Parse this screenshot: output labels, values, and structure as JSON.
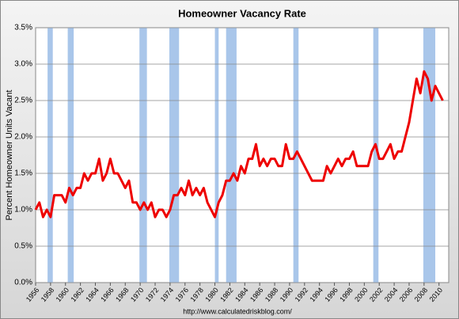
{
  "chart_data": {
    "type": "line",
    "title": "Homeowner Vacancy Rate",
    "y_label": "Percent Homeowner Units Vacant",
    "source": "http://www.calculatedriskblog.com/",
    "xlim": [
      1956,
      2011.3
    ],
    "xticks": [
      1956,
      1958,
      1960,
      1962,
      1964,
      1966,
      1968,
      1970,
      1972,
      1974,
      1976,
      1978,
      1980,
      1982,
      1984,
      1986,
      1988,
      1990,
      1992,
      1994,
      1996,
      1998,
      2000,
      2002,
      2004,
      2006,
      2008,
      2010
    ],
    "ylim": [
      0,
      3.5
    ],
    "yticks": [
      {
        "value": 0,
        "label": "0.0%"
      },
      {
        "value": 0.5,
        "label": "0.5%"
      },
      {
        "value": 1,
        "label": "1.0%"
      },
      {
        "value": 1.5,
        "label": "1.5%"
      },
      {
        "value": 2,
        "label": "2.0%"
      },
      {
        "value": 2.5,
        "label": "2.5%"
      },
      {
        "value": 3,
        "label": "3.0%"
      },
      {
        "value": 3.5,
        "label": "3.5%"
      }
    ],
    "grid": true,
    "recession_color": "#a9c6ea",
    "recessions": [
      [
        1957.6,
        1958.3
      ],
      [
        1960.3,
        1961.1
      ],
      [
        1969.9,
        1970.9
      ],
      [
        1973.9,
        1975.2
      ],
      [
        1980.0,
        1980.5
      ],
      [
        1981.5,
        1982.9
      ],
      [
        1990.5,
        1991.2
      ],
      [
        2001.2,
        2001.9
      ],
      [
        2007.9,
        2009.5
      ]
    ],
    "series": [
      {
        "color": "#ee0000",
        "x": [
          1956,
          1956.5,
          1957,
          1957.5,
          1958,
          1958.5,
          1959,
          1959.5,
          1960,
          1960.5,
          1961,
          1961.5,
          1962,
          1962.5,
          1963,
          1963.5,
          1964,
          1964.5,
          1965,
          1965.5,
          1966,
          1966.5,
          1967,
          1967.5,
          1968,
          1968.5,
          1969,
          1969.5,
          1970,
          1970.5,
          1971,
          1971.5,
          1972,
          1972.5,
          1973,
          1973.5,
          1974,
          1974.5,
          1975,
          1975.5,
          1976,
          1976.5,
          1977,
          1977.5,
          1978,
          1978.5,
          1979,
          1979.5,
          1980,
          1980.5,
          1981,
          1981.5,
          1982,
          1982.5,
          1983,
          1983.5,
          1984,
          1984.5,
          1985,
          1985.5,
          1986,
          1986.5,
          1987,
          1987.5,
          1988,
          1988.5,
          1989,
          1989.5,
          1990,
          1990.5,
          1991,
          1991.5,
          1992,
          1992.5,
          1993,
          1993.5,
          1994,
          1994.5,
          1995,
          1995.5,
          1996,
          1996.5,
          1997,
          1997.5,
          1998,
          1998.5,
          1999,
          1999.5,
          2000,
          2000.5,
          2001,
          2001.5,
          2002,
          2002.5,
          2003,
          2003.5,
          2004,
          2004.5,
          2005,
          2005.5,
          2006,
          2006.5,
          2007,
          2007.5,
          2008,
          2008.5,
          2009,
          2009.5,
          2010,
          2010.5
        ],
        "values": [
          1.0,
          1.1,
          0.9,
          1.0,
          0.9,
          1.2,
          1.2,
          1.2,
          1.1,
          1.3,
          1.2,
          1.3,
          1.3,
          1.5,
          1.4,
          1.5,
          1.5,
          1.7,
          1.4,
          1.5,
          1.7,
          1.5,
          1.5,
          1.4,
          1.3,
          1.4,
          1.1,
          1.1,
          1.0,
          1.1,
          1.0,
          1.1,
          0.9,
          1.0,
          1.0,
          0.9,
          1.0,
          1.2,
          1.2,
          1.3,
          1.2,
          1.4,
          1.2,
          1.3,
          1.2,
          1.3,
          1.1,
          1.0,
          0.9,
          1.1,
          1.2,
          1.4,
          1.4,
          1.5,
          1.4,
          1.6,
          1.5,
          1.7,
          1.7,
          1.9,
          1.6,
          1.7,
          1.6,
          1.7,
          1.7,
          1.6,
          1.6,
          1.9,
          1.7,
          1.7,
          1.8,
          1.7,
          1.6,
          1.5,
          1.4,
          1.4,
          1.4,
          1.4,
          1.6,
          1.5,
          1.6,
          1.7,
          1.6,
          1.7,
          1.7,
          1.8,
          1.6,
          1.6,
          1.6,
          1.6,
          1.8,
          1.9,
          1.7,
          1.7,
          1.8,
          1.9,
          1.7,
          1.8,
          1.8,
          2.0,
          2.2,
          2.5,
          2.8,
          2.6,
          2.9,
          2.8,
          2.5,
          2.7,
          2.6,
          2.5
        ]
      }
    ]
  }
}
